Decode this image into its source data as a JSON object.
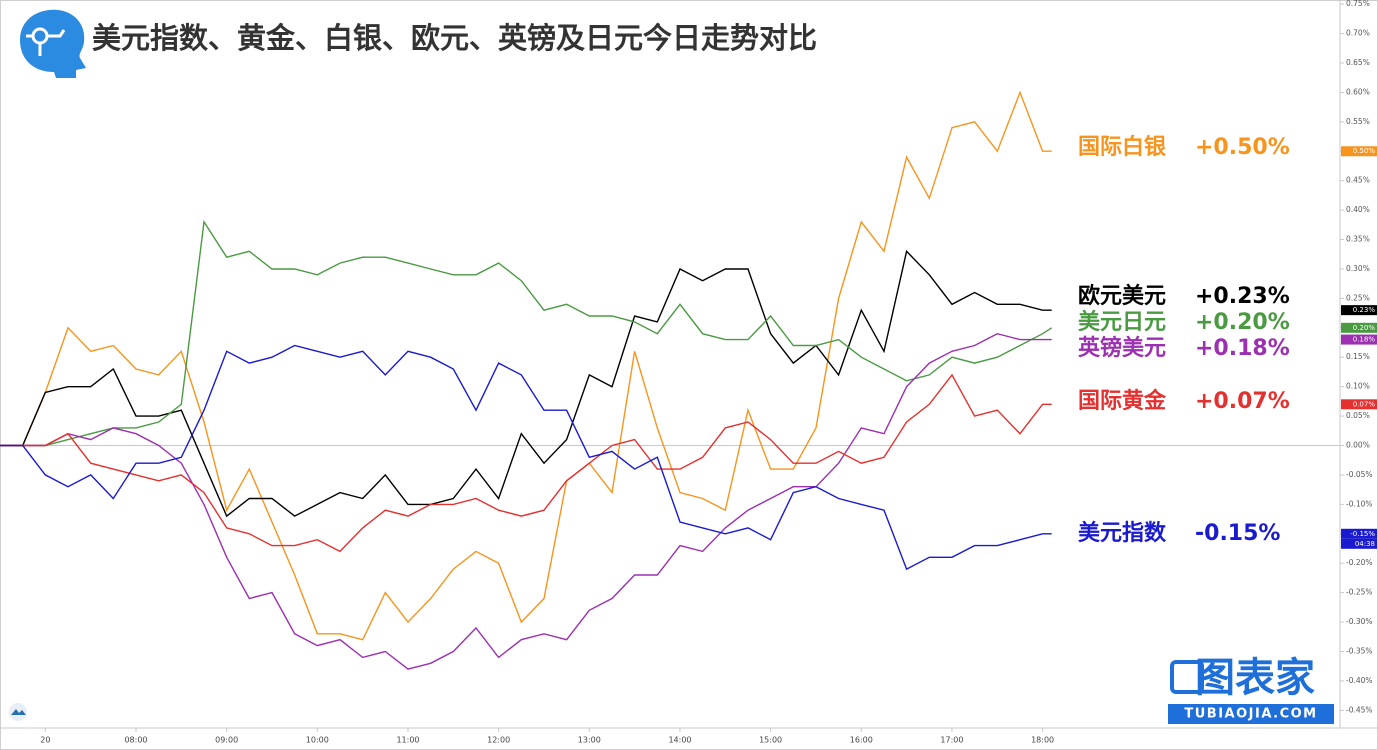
{
  "chart_data": {
    "type": "line",
    "title": "美元指数、黄金、白银、欧元、英镑及日元今日走势对比",
    "x": [
      6.5,
      6.75,
      7,
      7.25,
      7.5,
      7.75,
      8,
      8.25,
      8.5,
      8.75,
      9,
      9.25,
      9.5,
      9.75,
      10,
      10.25,
      10.5,
      10.75,
      11,
      11.25,
      11.5,
      11.75,
      12,
      12.25,
      12.5,
      12.75,
      13,
      13.25,
      13.5,
      13.75,
      14,
      14.25,
      14.5,
      14.75,
      15,
      15.25,
      15.5,
      15.75,
      16,
      16.25,
      16.5,
      16.75,
      17,
      17.25,
      17.5,
      17.75,
      18,
      18.1
    ],
    "xlim": [
      6.5,
      21.28
    ],
    "xticks": [
      {
        "value": 7,
        "label": "20"
      },
      {
        "value": 8,
        "label": "08:00"
      },
      {
        "value": 9,
        "label": "09:00"
      },
      {
        "value": 10,
        "label": "10:00"
      },
      {
        "value": 11,
        "label": "11:00"
      },
      {
        "value": 12,
        "label": "12:00"
      },
      {
        "value": 13,
        "label": "13:00"
      },
      {
        "value": 14,
        "label": "14:00"
      },
      {
        "value": 15,
        "label": "15:00"
      },
      {
        "value": 16,
        "label": "16:00"
      },
      {
        "value": 17,
        "label": "17:00"
      },
      {
        "value": 18,
        "label": "18:00"
      }
    ],
    "ylim": [
      -0.48,
      0.757
    ],
    "yticks": [
      {
        "value": -0.45,
        "label": "-0.45%"
      },
      {
        "value": -0.4,
        "label": "-0.40%"
      },
      {
        "value": -0.35,
        "label": "-0.35%"
      },
      {
        "value": -0.3,
        "label": "-0.30%"
      },
      {
        "value": -0.25,
        "label": "-0.25%"
      },
      {
        "value": -0.2,
        "label": "-0.20%"
      },
      {
        "value": -0.15,
        "label": "-0.15%"
      },
      {
        "value": -0.1,
        "label": "-0.10%"
      },
      {
        "value": -0.05,
        "label": "-0.05%"
      },
      {
        "value": 0,
        "label": "0.00%"
      },
      {
        "value": 0.05,
        "label": "0.05%"
      },
      {
        "value": 0.1,
        "label": "0.10%"
      },
      {
        "value": 0.15,
        "label": "0.15%"
      },
      {
        "value": 0.2,
        "label": "0.20%"
      },
      {
        "value": 0.25,
        "label": "0.25%"
      },
      {
        "value": 0.3,
        "label": "0.30%"
      },
      {
        "value": 0.35,
        "label": "0.35%"
      },
      {
        "value": 0.4,
        "label": "0.40%"
      },
      {
        "value": 0.45,
        "label": "0.45%"
      },
      {
        "value": 0.5,
        "label": "0.50%"
      },
      {
        "value": 0.55,
        "label": "0.55%"
      },
      {
        "value": 0.6,
        "label": "0.60%"
      },
      {
        "value": 0.65,
        "label": "0.65%"
      },
      {
        "value": 0.7,
        "label": "0.70%"
      },
      {
        "value": 0.75,
        "label": "0.75%"
      }
    ],
    "series": [
      {
        "name": "国际白银",
        "color": "#f7941d",
        "end_label": "+0.50%",
        "axis_badge": "0.50%",
        "values": [
          0,
          0,
          0.09,
          0.2,
          0.16,
          0.17,
          0.13,
          0.12,
          0.16,
          0.04,
          -0.11,
          -0.04,
          -0.13,
          -0.22,
          -0.32,
          -0.32,
          -0.33,
          -0.25,
          -0.3,
          -0.26,
          -0.21,
          -0.18,
          -0.2,
          -0.3,
          -0.26,
          -0.06,
          -0.03,
          -0.08,
          0.16,
          0.03,
          -0.08,
          -0.09,
          -0.11,
          0.06,
          -0.04,
          -0.04,
          0.03,
          0.25,
          0.38,
          0.33,
          0.49,
          0.42,
          0.54,
          0.55,
          0.5,
          0.6,
          0.5,
          0.5
        ]
      },
      {
        "name": "欧元美元",
        "color": "#000000",
        "end_label": "+0.23%",
        "axis_badge": "0.23%",
        "values": [
          0,
          0,
          0.09,
          0.1,
          0.1,
          0.13,
          0.05,
          0.05,
          0.06,
          -0.03,
          -0.12,
          -0.09,
          -0.09,
          -0.12,
          -0.1,
          -0.08,
          -0.09,
          -0.05,
          -0.1,
          -0.1,
          -0.09,
          -0.04,
          -0.09,
          0.02,
          -0.03,
          0.01,
          0.12,
          0.1,
          0.22,
          0.21,
          0.3,
          0.28,
          0.3,
          0.3,
          0.19,
          0.14,
          0.17,
          0.12,
          0.23,
          0.16,
          0.33,
          0.29,
          0.24,
          0.26,
          0.24,
          0.24,
          0.23,
          0.23
        ]
      },
      {
        "name": "美元日元",
        "color": "#4a9a42",
        "end_label": "+0.20%",
        "axis_badge": "0.20%",
        "values": [
          0,
          0,
          0,
          0.01,
          0.02,
          0.03,
          0.03,
          0.04,
          0.07,
          0.38,
          0.32,
          0.33,
          0.3,
          0.3,
          0.29,
          0.31,
          0.32,
          0.32,
          0.31,
          0.3,
          0.29,
          0.29,
          0.31,
          0.28,
          0.23,
          0.24,
          0.22,
          0.22,
          0.21,
          0.19,
          0.24,
          0.19,
          0.18,
          0.18,
          0.22,
          0.17,
          0.17,
          0.18,
          0.15,
          0.13,
          0.11,
          0.12,
          0.15,
          0.14,
          0.15,
          0.17,
          0.19,
          0.2
        ]
      },
      {
        "name": "英镑美元",
        "color": "#9b30b0",
        "end_label": "+0.18%",
        "axis_badge": "0.18%",
        "values": [
          0,
          0,
          0,
          0.02,
          0.01,
          0.03,
          0.02,
          0,
          -0.03,
          -0.1,
          -0.19,
          -0.26,
          -0.25,
          -0.32,
          -0.34,
          -0.33,
          -0.36,
          -0.35,
          -0.38,
          -0.37,
          -0.35,
          -0.31,
          -0.36,
          -0.33,
          -0.32,
          -0.33,
          -0.28,
          -0.26,
          -0.22,
          -0.22,
          -0.17,
          -0.18,
          -0.14,
          -0.11,
          -0.09,
          -0.07,
          -0.07,
          -0.03,
          0.03,
          0.02,
          0.1,
          0.14,
          0.16,
          0.17,
          0.19,
          0.18,
          0.18,
          0.18
        ]
      },
      {
        "name": "国际黄金",
        "color": "#e53030",
        "end_label": "+0.07%",
        "axis_badge": "0.07%",
        "values": [
          0,
          0,
          0,
          0.02,
          -0.03,
          -0.04,
          -0.05,
          -0.06,
          -0.05,
          -0.08,
          -0.14,
          -0.15,
          -0.17,
          -0.17,
          -0.16,
          -0.18,
          -0.14,
          -0.11,
          -0.12,
          -0.1,
          -0.1,
          -0.09,
          -0.11,
          -0.12,
          -0.11,
          -0.06,
          -0.03,
          0,
          0.01,
          -0.04,
          -0.04,
          -0.02,
          0.03,
          0.04,
          0.01,
          -0.03,
          -0.03,
          -0.01,
          -0.03,
          -0.02,
          0.04,
          0.07,
          0.12,
          0.05,
          0.06,
          0.02,
          0.07,
          0.07
        ]
      },
      {
        "name": "美元指数",
        "color": "#1a1ad0",
        "end_label": "-0.15%",
        "axis_badge": "-0.15%",
        "values": [
          0,
          0,
          -0.05,
          -0.07,
          -0.05,
          -0.09,
          -0.03,
          -0.03,
          -0.02,
          0.06,
          0.16,
          0.14,
          0.15,
          0.17,
          0.16,
          0.15,
          0.16,
          0.12,
          0.16,
          0.15,
          0.13,
          0.06,
          0.14,
          0.12,
          0.06,
          0.06,
          -0.02,
          -0.01,
          -0.04,
          -0.02,
          -0.13,
          -0.14,
          -0.15,
          -0.14,
          -0.16,
          -0.08,
          -0.07,
          -0.09,
          -0.1,
          -0.11,
          -0.21,
          -0.19,
          -0.19,
          -0.17,
          -0.17,
          -0.16,
          -0.15,
          -0.15
        ]
      }
    ],
    "countdown": "04:38",
    "watermark": {
      "brand": "图表家",
      "url": "TUBIAOJIA.COM"
    }
  }
}
